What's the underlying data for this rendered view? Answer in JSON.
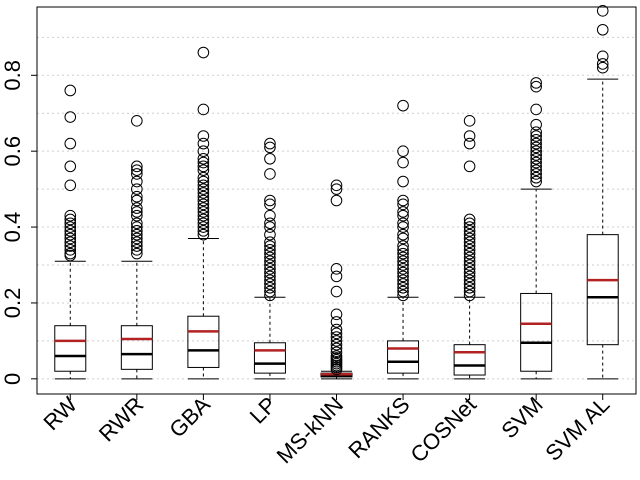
{
  "chart_data": {
    "type": "boxplot",
    "title": "",
    "xlabel": "",
    "ylabel": "",
    "ylim": [
      -0.04,
      0.98
    ],
    "yticks": [
      0,
      0.2,
      0.4,
      0.6,
      0.8
    ],
    "ytick_labels": [
      "0",
      "0.2",
      "0.4",
      "0.6",
      "0.8"
    ],
    "grid": true,
    "colors": {
      "median": "#000000",
      "mean": "#b22222",
      "grid": "#cfcfcf"
    },
    "categories": [
      "RW",
      "RWR",
      "GBA",
      "LP",
      "MS-kNN",
      "RANKS",
      "COSNet",
      "SVM",
      "SVM AL"
    ],
    "boxes": [
      {
        "name": "RW",
        "whisker_low": 0.0,
        "q1": 0.02,
        "median": 0.06,
        "mean": 0.1,
        "q3": 0.14,
        "whisker_high": 0.31,
        "outliers": [
          0.76,
          0.69,
          0.62,
          0.56,
          0.51,
          0.43,
          0.42,
          0.41,
          0.4,
          0.39,
          0.38,
          0.37,
          0.36,
          0.35,
          0.34,
          0.33,
          0.325
        ]
      },
      {
        "name": "RWR",
        "whisker_low": 0.0,
        "q1": 0.025,
        "median": 0.065,
        "mean": 0.105,
        "q3": 0.14,
        "whisker_high": 0.31,
        "outliers": [
          0.68,
          0.56,
          0.55,
          0.54,
          0.52,
          0.5,
          0.48,
          0.47,
          0.45,
          0.44,
          0.43,
          0.41,
          0.4,
          0.39,
          0.38,
          0.37,
          0.36,
          0.35,
          0.34,
          0.33
        ]
      },
      {
        "name": "GBA",
        "whisker_low": 0.0,
        "q1": 0.03,
        "median": 0.075,
        "mean": 0.125,
        "q3": 0.165,
        "whisker_high": 0.37,
        "outliers": [
          0.86,
          0.71,
          0.64,
          0.62,
          0.6,
          0.58,
          0.57,
          0.56,
          0.55,
          0.53,
          0.52,
          0.51,
          0.5,
          0.49,
          0.48,
          0.47,
          0.46,
          0.45,
          0.44,
          0.43,
          0.42,
          0.41,
          0.4,
          0.39,
          0.38
        ]
      },
      {
        "name": "LP",
        "whisker_low": 0.0,
        "q1": 0.015,
        "median": 0.04,
        "mean": 0.075,
        "q3": 0.095,
        "whisker_high": 0.215,
        "outliers": [
          0.62,
          0.61,
          0.58,
          0.54,
          0.47,
          0.46,
          0.43,
          0.41,
          0.4,
          0.38,
          0.36,
          0.35,
          0.34,
          0.33,
          0.32,
          0.31,
          0.3,
          0.29,
          0.28,
          0.27,
          0.26,
          0.25,
          0.24,
          0.23,
          0.22
        ]
      },
      {
        "name": "MS-kNN",
        "whisker_low": 0.0,
        "q1": 0.005,
        "median": 0.008,
        "mean": 0.012,
        "q3": 0.015,
        "whisker_high": 0.02,
        "outliers": [
          0.51,
          0.5,
          0.47,
          0.29,
          0.27,
          0.23,
          0.17,
          0.15,
          0.13,
          0.12,
          0.11,
          0.1,
          0.09,
          0.08,
          0.07,
          0.06,
          0.055,
          0.05,
          0.045,
          0.04,
          0.035,
          0.03,
          0.025
        ]
      },
      {
        "name": "RANKS",
        "whisker_low": 0.0,
        "q1": 0.015,
        "median": 0.045,
        "mean": 0.08,
        "q3": 0.1,
        "whisker_high": 0.215,
        "outliers": [
          0.72,
          0.6,
          0.57,
          0.52,
          0.47,
          0.46,
          0.44,
          0.43,
          0.41,
          0.4,
          0.38,
          0.37,
          0.35,
          0.34,
          0.33,
          0.32,
          0.31,
          0.3,
          0.29,
          0.28,
          0.27,
          0.26,
          0.25,
          0.24,
          0.23,
          0.22
        ]
      },
      {
        "name": "COSNet",
        "whisker_low": 0.0,
        "q1": 0.01,
        "median": 0.035,
        "mean": 0.07,
        "q3": 0.09,
        "whisker_high": 0.215,
        "outliers": [
          0.68,
          0.64,
          0.62,
          0.56,
          0.42,
          0.41,
          0.4,
          0.39,
          0.38,
          0.37,
          0.36,
          0.35,
          0.34,
          0.33,
          0.32,
          0.31,
          0.3,
          0.29,
          0.28,
          0.27,
          0.26,
          0.25,
          0.24,
          0.23,
          0.22
        ]
      },
      {
        "name": "SVM",
        "whisker_low": 0.0,
        "q1": 0.02,
        "median": 0.095,
        "mean": 0.145,
        "q3": 0.225,
        "whisker_high": 0.5,
        "outliers": [
          0.78,
          0.77,
          0.71,
          0.67,
          0.65,
          0.64,
          0.63,
          0.62,
          0.61,
          0.6,
          0.59,
          0.58,
          0.57,
          0.56,
          0.55,
          0.54,
          0.53,
          0.52
        ]
      },
      {
        "name": "SVM AL",
        "whisker_low": 0.0,
        "q1": 0.09,
        "median": 0.215,
        "mean": 0.26,
        "q3": 0.38,
        "whisker_high": 0.79,
        "outliers": [
          0.97,
          0.92,
          0.85,
          0.83,
          0.82
        ]
      }
    ]
  }
}
